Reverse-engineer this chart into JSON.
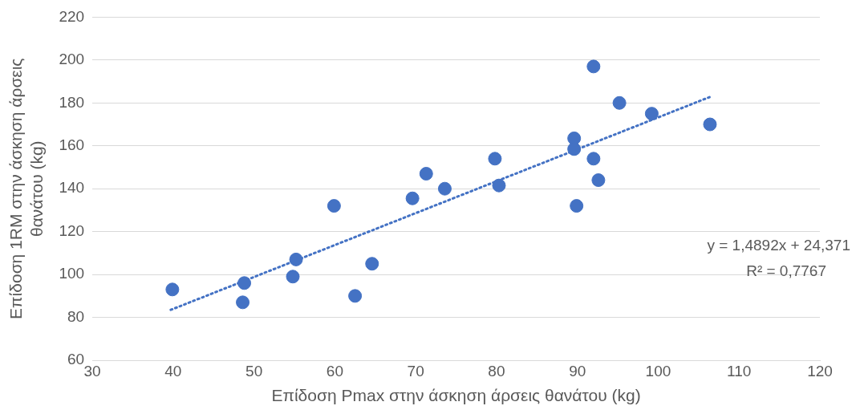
{
  "chart_data": {
    "type": "scatter",
    "xlabel": "Επίδοση Pmax στην άσκηση άρσεις θανάτου (kg)",
    "ylabel": "Επίδοση 1RM στην άσκηση άρσεις θανάτου (kg)",
    "x": [
      39.9,
      48.8,
      48.6,
      55.2,
      54.8,
      59.9,
      62.5,
      64.6,
      69.6,
      71.3,
      73.6,
      79.8,
      80.3,
      89.6,
      89.6,
      89.9,
      92.0,
      92.0,
      92.6,
      95.2,
      99.2,
      106.4
    ],
    "series": [
      {
        "color": "#4472c4",
        "marker": "circle",
        "values": [
          93,
          96,
          87,
          107,
          99,
          132,
          90,
          105,
          135.5,
          147,
          140,
          154,
          141.5,
          163.5,
          158.5,
          132,
          197,
          154,
          144,
          180,
          175,
          170
        ]
      },
      {
        "type": "line",
        "color": "#4472c4",
        "line_style": "dotted",
        "marker": "none",
        "x": [
          39.7,
          106.4
        ],
        "values": [
          83.5,
          182.8
        ]
      }
    ],
    "xlim": [
      30,
      120
    ],
    "xticks": [
      30,
      40,
      50,
      60,
      70,
      80,
      90,
      100,
      110,
      120
    ],
    "ylim": [
      60,
      220
    ],
    "yticks": [
      60,
      80,
      100,
      120,
      140,
      160,
      180,
      200,
      220
    ],
    "grid": "y",
    "legend": false,
    "annotations": [
      "y = 1,4892x + 24,371",
      "R² = 0,7767"
    ]
  }
}
